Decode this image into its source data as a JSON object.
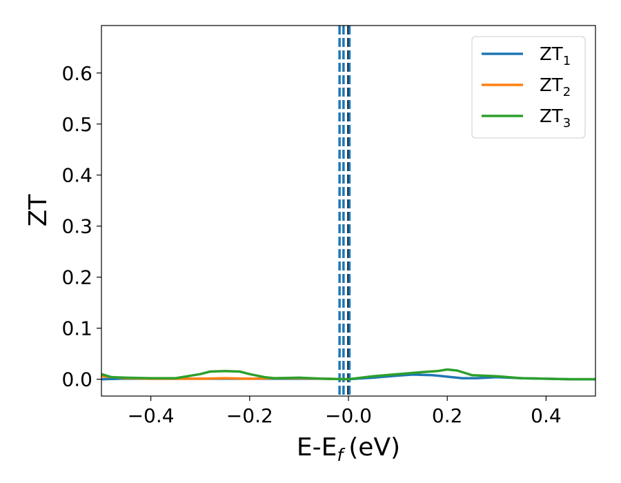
{
  "chart_data": {
    "type": "line",
    "xlabel": "E-E",
    "xlabel_sub": "f",
    "xlabel_unit": "(eV)",
    "ylabel": "ZT",
    "xlim": [
      -0.5,
      0.5
    ],
    "ylim": [
      -0.033,
      0.693
    ],
    "xticks": [
      -0.4,
      -0.2,
      0.0,
      0.2,
      0.4
    ],
    "xtick_labels": [
      "−0.4",
      "−0.2",
      "−0.0",
      "0.2",
      "0.4"
    ],
    "yticks": [
      0.0,
      0.1,
      0.2,
      0.3,
      0.4,
      0.5,
      0.6
    ],
    "ytick_labels": [
      "0.0",
      "0.1",
      "0.2",
      "0.3",
      "0.4",
      "0.5",
      "0.6"
    ],
    "grid": false,
    "legend_position": "top-right",
    "series": [
      {
        "name": "ZT",
        "subscript": "1",
        "color": "#1f77b4",
        "x": [
          -0.5,
          -0.46,
          -0.4,
          -0.35,
          -0.3,
          -0.25,
          -0.2,
          -0.15,
          -0.1,
          -0.05,
          0.0,
          0.05,
          0.1,
          0.13,
          0.17,
          0.2,
          0.23,
          0.26,
          0.3,
          0.35,
          0.4,
          0.45,
          0.5
        ],
        "y": [
          0.0,
          0.001,
          0.001,
          0.001,
          0.001,
          0.001,
          0.001,
          0.001,
          0.001,
          0.001,
          0.0,
          0.003,
          0.007,
          0.009,
          0.008,
          0.005,
          0.002,
          0.002,
          0.004,
          0.002,
          0.001,
          0.0,
          0.0
        ]
      },
      {
        "name": "ZT",
        "subscript": "2",
        "color": "#ff7f0e",
        "x": [
          -0.5,
          -0.45,
          -0.4,
          -0.35,
          -0.3,
          -0.25,
          -0.2,
          -0.15,
          -0.1,
          -0.05,
          0.0
        ],
        "y": [
          0.006,
          0.002,
          0.001,
          0.001,
          0.001,
          0.002,
          0.001,
          0.002,
          0.002,
          0.001,
          0.0
        ]
      },
      {
        "name": "ZT",
        "subscript": "3",
        "color": "#2ca02c",
        "x": [
          -0.5,
          -0.48,
          -0.45,
          -0.4,
          -0.35,
          -0.3,
          -0.28,
          -0.25,
          -0.22,
          -0.2,
          -0.17,
          -0.15,
          -0.1,
          -0.05,
          0.0,
          0.05,
          0.1,
          0.15,
          0.18,
          0.2,
          0.22,
          0.25,
          0.3,
          0.35,
          0.4,
          0.45,
          0.5
        ],
        "y": [
          0.01,
          0.004,
          0.003,
          0.002,
          0.002,
          0.01,
          0.015,
          0.016,
          0.015,
          0.01,
          0.004,
          0.002,
          0.003,
          0.001,
          0.0,
          0.006,
          0.01,
          0.014,
          0.016,
          0.019,
          0.017,
          0.008,
          0.006,
          0.002,
          0.001,
          0.0,
          0.0
        ]
      }
    ],
    "vlines": [
      {
        "x": -0.018,
        "color": "#1f77b4",
        "style": "dashed"
      },
      {
        "x": -0.01,
        "color": "#1f77b4",
        "style": "dashed"
      },
      {
        "x": 0.0,
        "color": "#000000",
        "style": "dashed"
      },
      {
        "x": 0.002,
        "color": "#1f77b4",
        "style": "dashed"
      }
    ]
  }
}
